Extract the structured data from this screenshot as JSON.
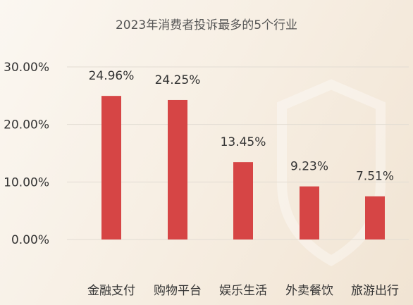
{
  "chart_data": {
    "type": "bar",
    "title": "2023年消费者投诉最多的5个行业",
    "categories": [
      "金融支付",
      "购物平台",
      "娱乐生活",
      "外卖餐饮",
      "旅游出行"
    ],
    "values": [
      24.96,
      24.25,
      13.45,
      9.23,
      7.51
    ],
    "data_labels": [
      "24.96%",
      "24.25%",
      "13.45%",
      "9.23%",
      "7.51%"
    ],
    "y_ticks": [
      0,
      10,
      20,
      30
    ],
    "y_tick_labels": [
      "0.00%",
      "10.00%",
      "20.00%",
      "30.00%"
    ],
    "ylim": [
      0,
      30
    ],
    "grid": true,
    "legend": "none",
    "bar_color": "#d64545"
  }
}
